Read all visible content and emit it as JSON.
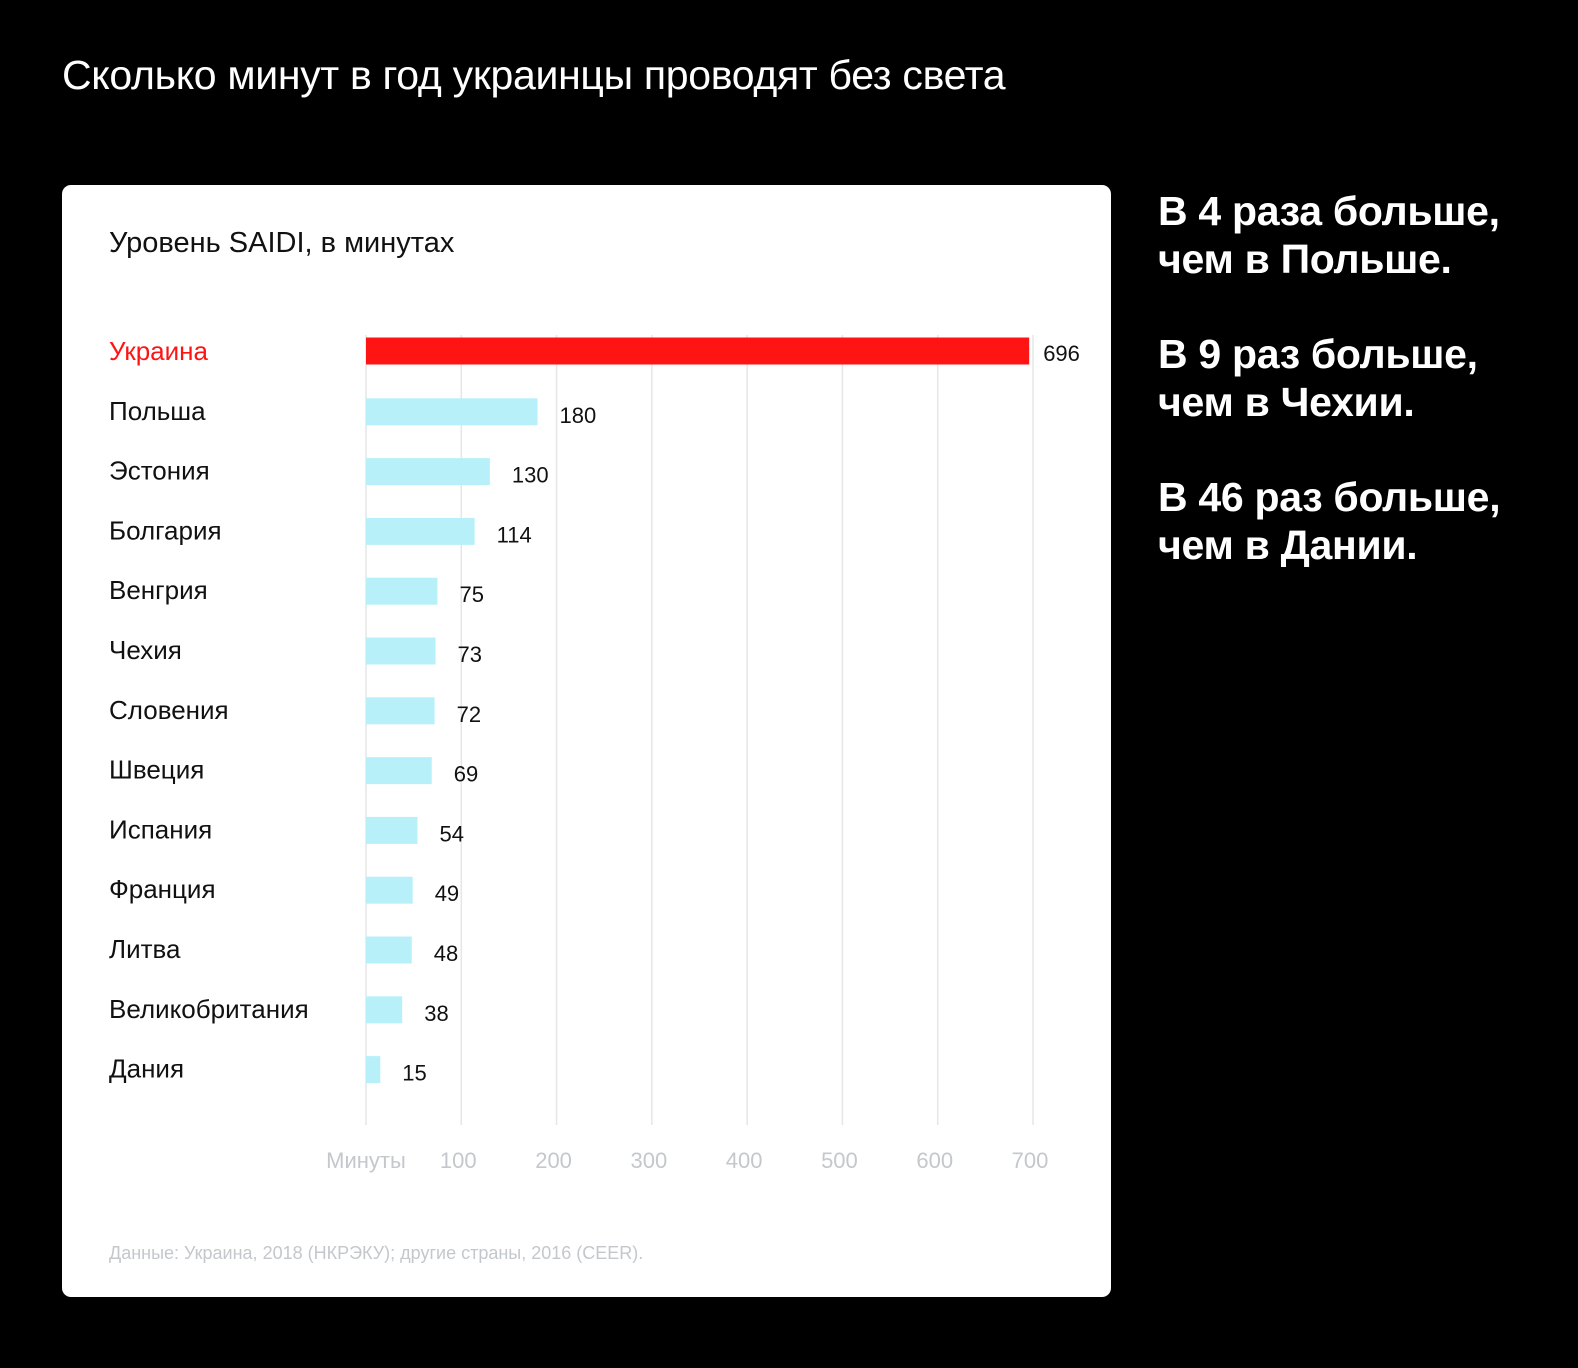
{
  "title": "Сколько минут в год украинцы проводят без света",
  "side_notes": [
    {
      "line1": "В 4 раза больше,",
      "line2": "чем в Польше."
    },
    {
      "line1": "В 9 раз больше,",
      "line2": "чем в Чехии."
    },
    {
      "line1": "В 46 раз больше,",
      "line2": "чем в Дании."
    }
  ],
  "colors": {
    "highlight": "#ff1414",
    "bar": "#b8f0fa",
    "grid": "#e6e6e6",
    "axis_text": "#c4c7cc"
  },
  "chart_data": {
    "type": "bar",
    "orientation": "horizontal",
    "title": "Уровень SAIDI, в минутах",
    "xlabel": "Минуты",
    "xlim": [
      0,
      700
    ],
    "xticks": [
      100,
      200,
      300,
      400,
      500,
      600,
      700
    ],
    "grid": true,
    "categories": [
      "Украина",
      "Польша",
      "Эстония",
      "Болгария",
      "Венгрия",
      "Чехия",
      "Словения",
      "Швеция",
      "Испания",
      "Франция",
      "Литва",
      "Великобритания",
      "Дания"
    ],
    "values": [
      696,
      180,
      130,
      114,
      75,
      73,
      72,
      69,
      54,
      49,
      48,
      38,
      15
    ],
    "highlight": "Украина",
    "source": "Данные: Украина, 2018 (НКРЭКУ); другие страны, 2016 (CEER)."
  }
}
